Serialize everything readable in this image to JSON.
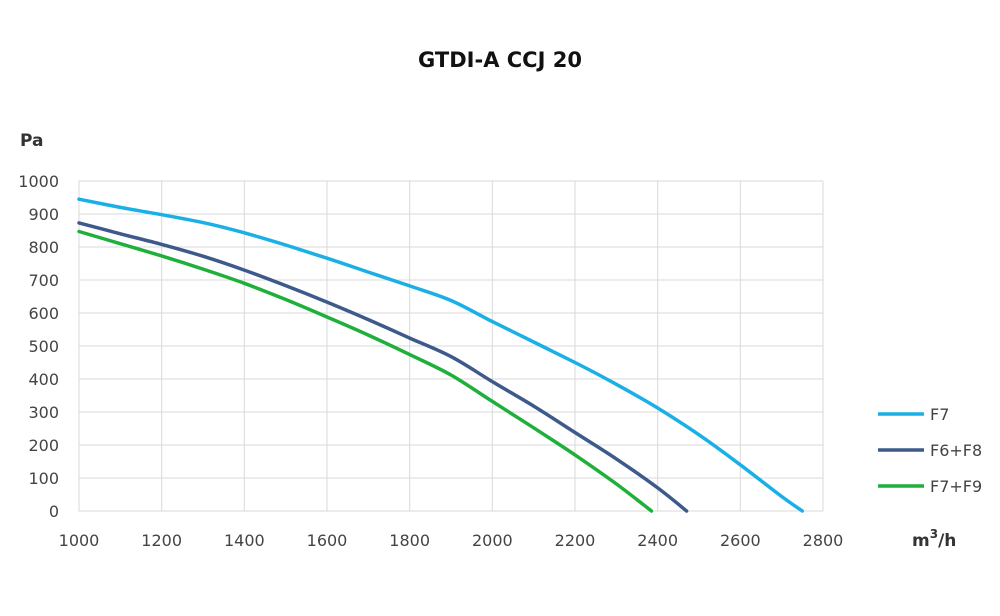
{
  "chart_data": {
    "type": "line",
    "title": "GTDI-A CCJ 20",
    "ylabel": "Pa",
    "xlabel_base": "m",
    "xlabel_sup": "3",
    "xlabel_tail": "/h",
    "xlim": [
      1000,
      2800
    ],
    "ylim": [
      0,
      1000
    ],
    "xticks": [
      1000,
      1200,
      1400,
      1600,
      1800,
      2000,
      2200,
      2400,
      2600,
      2800
    ],
    "yticks": [
      0,
      100,
      200,
      300,
      400,
      500,
      600,
      700,
      800,
      900,
      1000
    ],
    "grid": true,
    "legend_position": "right",
    "series": [
      {
        "name": "F7",
        "color": "#1ab0e5",
        "points": [
          [
            1000,
            945
          ],
          [
            1100,
            920
          ],
          [
            1200,
            898
          ],
          [
            1300,
            874
          ],
          [
            1400,
            843
          ],
          [
            1500,
            806
          ],
          [
            1600,
            766
          ],
          [
            1700,
            724
          ],
          [
            1800,
            682
          ],
          [
            1900,
            638
          ],
          [
            2000,
            574
          ],
          [
            2100,
            512
          ],
          [
            2200,
            450
          ],
          [
            2300,
            384
          ],
          [
            2400,
            312
          ],
          [
            2500,
            231
          ],
          [
            2600,
            140
          ],
          [
            2700,
            44
          ],
          [
            2750,
            0
          ]
        ]
      },
      {
        "name": "F6+F8",
        "color": "#3d5a8a",
        "points": [
          [
            1000,
            873
          ],
          [
            1100,
            840
          ],
          [
            1200,
            808
          ],
          [
            1300,
            772
          ],
          [
            1400,
            730
          ],
          [
            1500,
            683
          ],
          [
            1600,
            633
          ],
          [
            1700,
            580
          ],
          [
            1800,
            524
          ],
          [
            1900,
            468
          ],
          [
            2000,
            392
          ],
          [
            2100,
            318
          ],
          [
            2200,
            238
          ],
          [
            2300,
            158
          ],
          [
            2400,
            70
          ],
          [
            2470,
            0
          ]
        ]
      },
      {
        "name": "F7+F9",
        "color": "#1faf3b",
        "points": [
          [
            1000,
            847
          ],
          [
            1100,
            810
          ],
          [
            1200,
            773
          ],
          [
            1300,
            733
          ],
          [
            1400,
            690
          ],
          [
            1500,
            641
          ],
          [
            1600,
            588
          ],
          [
            1700,
            533
          ],
          [
            1800,
            474
          ],
          [
            1900,
            412
          ],
          [
            2000,
            332
          ],
          [
            2100,
            252
          ],
          [
            2200,
            170
          ],
          [
            2300,
            82
          ],
          [
            2385,
            0
          ]
        ]
      }
    ]
  }
}
